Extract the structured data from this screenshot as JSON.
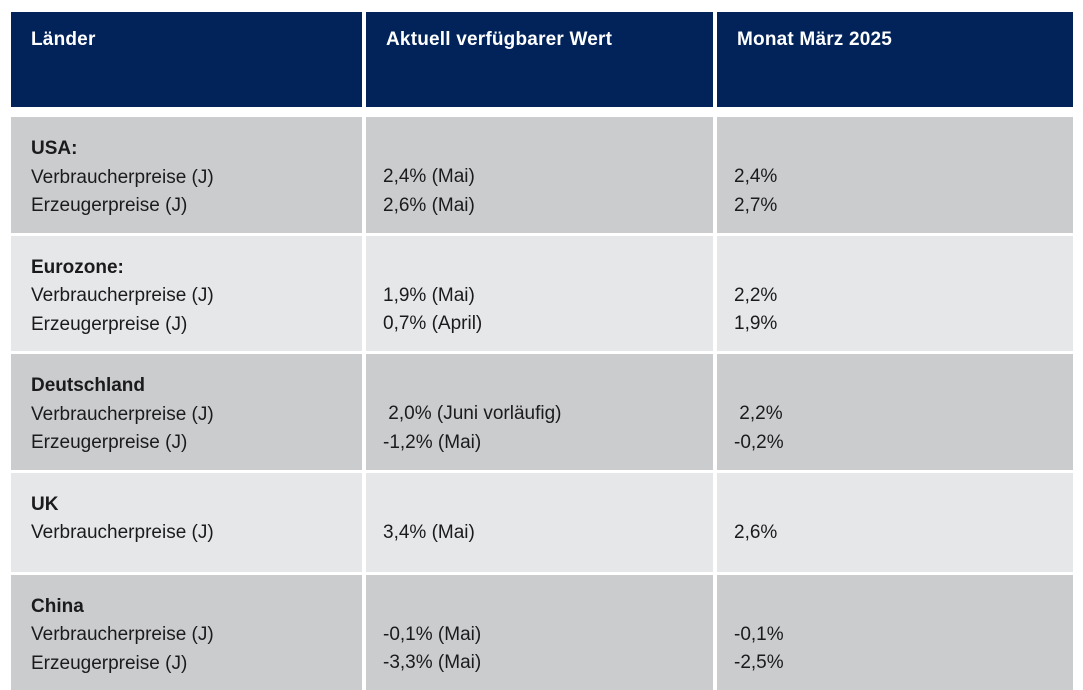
{
  "chart_data": {
    "type": "table",
    "columns": [
      "Länder",
      "Aktuell verfügbarer Wert",
      "Monat März 2025"
    ],
    "rows": [
      {
        "country": "USA:",
        "metrics": [
          "Verbraucherpreise (J)",
          "Erzeugerpreise (J)"
        ],
        "current_values": [
          "2,4% (Mai)",
          "2,6% (Mai)"
        ],
        "march_2025": [
          "2,4%",
          "2,7%"
        ]
      },
      {
        "country": "Eurozone:",
        "metrics": [
          "Verbraucherpreise (J)",
          "Erzeugerpreise (J)"
        ],
        "current_values": [
          "1,9% (Mai)",
          "0,7% (April)"
        ],
        "march_2025": [
          "2,2%",
          "1,9%"
        ]
      },
      {
        "country": "Deutschland",
        "metrics": [
          "Verbraucherpreise (J)",
          "Erzeugerpreise (J)"
        ],
        "current_values": [
          " 2,0% (Juni vorläufig)",
          "-1,2% (Mai)"
        ],
        "march_2025": [
          " 2,2%",
          "-0,2%"
        ]
      },
      {
        "country": "UK",
        "metrics": [
          "Verbraucherpreise (J)"
        ],
        "current_values": [
          "3,4% (Mai)"
        ],
        "march_2025": [
          "2,6%"
        ]
      },
      {
        "country": "China",
        "metrics": [
          "Verbraucherpreise (J)",
          "Erzeugerpreise (J)"
        ],
        "current_values": [
          "-0,1% (Mai)",
          "-3,3% (Mai)"
        ],
        "march_2025": [
          "-0,1%",
          "-2,5%"
        ]
      }
    ]
  },
  "colors": {
    "header_bg": "#02235a",
    "header_text": "#ffffff",
    "row_dark": "#cbccce",
    "row_light": "#e6e7e9",
    "body_text": "#1b1b1d",
    "page_bg": "#ffffff"
  }
}
